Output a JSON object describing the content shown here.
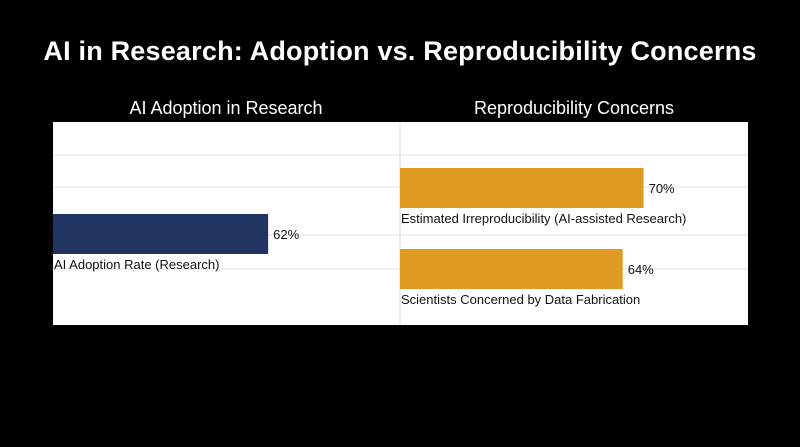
{
  "title": "AI in Research: Adoption vs. Reproducibility Concerns",
  "chart_data": [
    {
      "type": "bar",
      "orientation": "horizontal",
      "title": "AI Adoption in Research",
      "categories": [
        "AI Adoption Rate (Research)"
      ],
      "values": [
        62
      ],
      "value_labels": [
        "62%"
      ],
      "unit": "%",
      "xlim": [
        0,
        100
      ],
      "grid": true,
      "colors": [
        "#1f3461"
      ]
    },
    {
      "type": "bar",
      "orientation": "horizontal",
      "title": "Reproducibility Concerns",
      "categories": [
        "Estimated Irreproducibility (AI-assisted Research)",
        "Scientists Concerned by Data Fabrication"
      ],
      "values": [
        70,
        64
      ],
      "value_labels": [
        "70%",
        "64%"
      ],
      "unit": "%",
      "xlim": [
        0,
        100
      ],
      "grid": true,
      "colors": [
        "#e09b22",
        "#e09b22"
      ]
    }
  ]
}
